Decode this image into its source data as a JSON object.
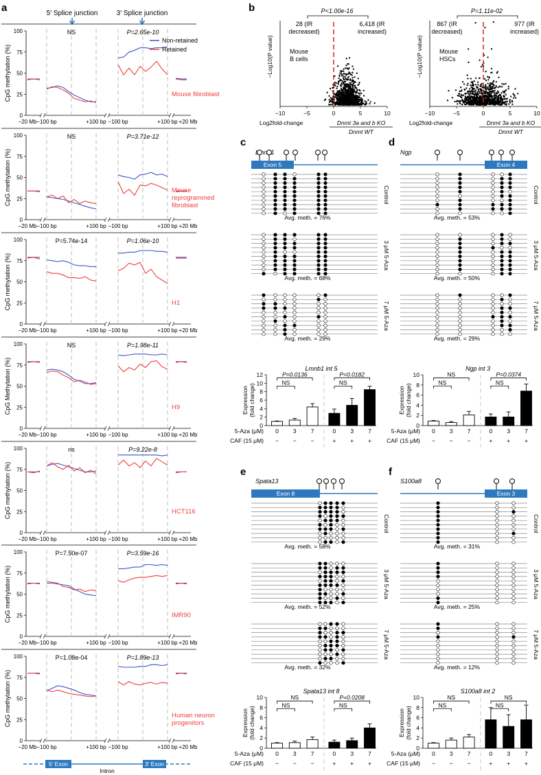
{
  "colors": {
    "blue": "#3a55c8",
    "red": "#f03c3c",
    "dash": "#c8c8c8",
    "exon": "#2e78c0",
    "redline": "#d42020"
  },
  "panel_labels": {
    "a": "a",
    "b": "b",
    "c": "c",
    "d": "d",
    "e": "e",
    "f": "f"
  },
  "panel_a": {
    "header_5": "5′ Splice junction",
    "header_3": "3′ Splice junction",
    "legend": [
      "Non-retained",
      "Retained"
    ],
    "ylabel": "CpG methylation (%)",
    "ylabel_alt": "CpG Methylation (%)",
    "xticks": [
      "−20 Mb",
      "−100 bp",
      "+100 bp",
      "−100 bp",
      "+100 bp",
      "+20 Mb"
    ],
    "yticks": [
      "0",
      "25",
      "50",
      "75",
      "100"
    ],
    "gene_model": {
      "exon5": "5′ Exon",
      "exon3": "3′ Exon",
      "intron": "Intron"
    }
  },
  "chart_data": [
    {
      "type": "line",
      "title": "Mouse fibroblast",
      "p5": "NS",
      "p3": "P=2.65e-10",
      "ylabel_key": "ylabel",
      "ylim": [
        0,
        100
      ],
      "series": [
        {
          "name": "Non-retained",
          "segments": [
            [
              43,
              43,
              43
            ],
            [
              32,
              33,
              35,
              33,
              28,
              24,
              21,
              18,
              16,
              16
            ],
            [
              68,
              69,
              75,
              77,
              80,
              80,
              79,
              80,
              80,
              81
            ],
            [
              44,
              43,
              43
            ]
          ]
        },
        {
          "name": "Retained",
          "segments": [
            [
              42,
              43,
              42
            ],
            [
              31,
              34,
              33,
              30,
              26,
              20,
              18,
              16,
              17,
              15
            ],
            [
              60,
              48,
              56,
              48,
              58,
              52,
              57,
              64,
              55,
              48
            ],
            [
              43,
              42,
              42
            ]
          ]
        }
      ]
    },
    {
      "type": "line",
      "title": "Mouse reprogrammed fibroblast",
      "p5": "NS",
      "p3": "P=3.71e-12",
      "ylabel_key": "ylabel",
      "ylim": [
        0,
        100
      ],
      "series": [
        {
          "name": "Non-retained",
          "segments": [
            [
              34,
              34,
              34
            ],
            [
              27,
              26,
              25,
              24,
              22,
              20,
              18,
              16,
              14,
              13
            ],
            [
              53,
              51,
              50,
              48,
              53,
              54,
              56,
              53,
              54,
              51
            ],
            [
              34,
              34,
              34
            ]
          ]
        },
        {
          "name": "Retained",
          "segments": [
            [
              34,
              34,
              33
            ],
            [
              27,
              29,
              25,
              28,
              20,
              24,
              19,
              22,
              20,
              19
            ],
            [
              45,
              31,
              36,
              29,
              41,
              40,
              43,
              41,
              38,
              35
            ],
            [
              33,
              34,
              34
            ]
          ]
        }
      ]
    },
    {
      "type": "line",
      "title": "H1",
      "p5": "P=5.74e-14",
      "p3": "P=1.06e-10",
      "ylabel_key": "ylabel",
      "ylim": [
        0,
        100
      ],
      "series": [
        {
          "name": "Non-retained",
          "segments": [
            [
              79,
              79,
              79
            ],
            [
              76,
              75,
              74,
              75,
              73,
              70,
              69,
              69,
              68,
              68
            ],
            [
              84,
              84,
              85,
              85,
              87,
              87,
              87,
              86,
              86,
              85
            ],
            [
              79,
              79,
              79
            ]
          ]
        },
        {
          "name": "Retained",
          "segments": [
            [
              78,
              79,
              77
            ],
            [
              62,
              60,
              60,
              58,
              55,
              55,
              54,
              56,
              52,
              51
            ],
            [
              63,
              66,
              72,
              70,
              73,
              60,
              65,
              56,
              52,
              48
            ],
            [
              78,
              78,
              78
            ]
          ]
        }
      ]
    },
    {
      "type": "line",
      "title": "H9",
      "p5": "NS",
      "p3": "P=1.98e-11",
      "ylabel_key": "ylabel_alt",
      "ylim": [
        0,
        100
      ],
      "series": [
        {
          "name": "Non-retained",
          "segments": [
            [
              79,
              79,
              79
            ],
            [
              69,
              70,
              69,
              67,
              63,
              58,
              56,
              53,
              53,
              54
            ],
            [
              87,
              86,
              87,
              88,
              88,
              88,
              87,
              87,
              88,
              87
            ],
            [
              79,
              79,
              79
            ]
          ]
        },
        {
          "name": "Retained",
          "segments": [
            [
              78,
              79,
              78
            ],
            [
              66,
              68,
              67,
              63,
              60,
              55,
              57,
              55,
              52,
              53
            ],
            [
              74,
              67,
              72,
              69,
              76,
              72,
              79,
              80,
              73,
              70
            ],
            [
              78,
              79,
              78
            ]
          ]
        }
      ]
    },
    {
      "type": "line",
      "title": "HCT116",
      "p5": "ns",
      "p3": "P=9.22e-8",
      "ylabel_key": "ylabel",
      "ylim": [
        0,
        100
      ],
      "series": [
        {
          "name": "Non-retained",
          "segments": [
            [
              72,
              72,
              72
            ],
            [
              79,
              81,
              82,
              80,
              78,
              76,
              74,
              72,
              72,
              73
            ],
            [
              92,
              92,
              92,
              92,
              92,
              92,
              92,
              92,
              91,
              92
            ],
            [
              72,
              72,
              72
            ]
          ]
        },
        {
          "name": "Retained",
          "segments": [
            [
              72,
              71,
              73
            ],
            [
              79,
              83,
              78,
              75,
              80,
              73,
              77,
              71,
              74,
              70
            ],
            [
              80,
              86,
              79,
              83,
              77,
              85,
              79,
              88,
              84,
              80
            ],
            [
              71,
              72,
              72
            ]
          ]
        }
      ]
    },
    {
      "type": "line",
      "title": "IMR90",
      "p5": "P=7.50e-07",
      "p3": "P=3.59e-16",
      "ylabel_key": "ylabel",
      "ylim": [
        0,
        100
      ],
      "series": [
        {
          "name": "Non-retained",
          "segments": [
            [
              63,
              63,
              63
            ],
            [
              63,
              63,
              62,
              61,
              60,
              56,
              53,
              50,
              49,
              48
            ],
            [
              80,
              80,
              81,
              82,
              82,
              85,
              85,
              84,
              85,
              84
            ],
            [
              63,
              63,
              63
            ]
          ]
        },
        {
          "name": "Retained",
          "segments": [
            [
              62,
              63,
              62
            ],
            [
              65,
              64,
              63,
              59,
              58,
              55,
              56,
              53,
              55,
              54
            ],
            [
              66,
              64,
              67,
              69,
              70,
              70,
              71,
              72,
              71,
              72
            ],
            [
              62,
              63,
              62
            ]
          ]
        }
      ]
    },
    {
      "type": "line",
      "title": "Human neuron progenitors",
      "p5": "P=1.08e-04",
      "p3": "P=1.89e-13",
      "ylabel_key": "ylabel",
      "ylim": [
        0,
        100
      ],
      "series": [
        {
          "name": "Non-retained",
          "segments": [
            [
              80,
              80,
              80
            ],
            [
              59,
              62,
              65,
              64,
              62,
              60,
              57,
              55,
              54,
              53
            ],
            [
              88,
              87,
              87,
              87,
              88,
              88,
              90,
              90,
              89,
              90
            ],
            [
              80,
              80,
              80
            ]
          ]
        },
        {
          "name": "Retained",
          "segments": [
            [
              80,
              80,
              79
            ],
            [
              60,
              58,
              60,
              58,
              56,
              55,
              54,
              53,
              52,
              53
            ],
            [
              70,
              66,
              70,
              67,
              66,
              68,
              69,
              67,
              69,
              68
            ],
            [
              79,
              80,
              79
            ]
          ]
        }
      ]
    },
    {
      "type": "scatter",
      "title": "Mouse B cells",
      "pvalue": "P<1.00e-16",
      "left_label": "28 (IR decreased)",
      "right_label": "6,418 (IR increased)",
      "xlim": [
        -10,
        10
      ],
      "xticks": [
        "−10",
        "−5",
        "0",
        "5",
        "10"
      ],
      "xlabel_1": "Log2fold-change",
      "xlabel_2": "Dnmt 3a and b KO",
      "xlabel_3": "Dnmt WT",
      "ylabel": "−Log10(P value)"
    },
    {
      "type": "scatter",
      "title": "Mouse HSCs",
      "pvalue": "P=1.11e-02",
      "left_label": "867 (IR decreased)",
      "right_label": "977 (IR increased)",
      "xlim": [
        -10,
        10
      ],
      "xticks": [
        "−10",
        "−5",
        "0",
        "5",
        "10"
      ],
      "xlabel_1": "Log2fold-change",
      "xlabel_2": "Dnmt 3a and b KO",
      "xlabel_3": "Dnmt WT",
      "ylabel": "−Log10(P value)"
    },
    {
      "type": "bar",
      "title": "Lmnb1 int 5",
      "ylabel": "Expression (fold change)",
      "ylim": [
        0,
        12
      ],
      "yticks": [
        "0",
        "2",
        "4",
        "6",
        "8",
        "10",
        "12"
      ],
      "aza": [
        "0",
        "3",
        "7",
        "0",
        "3",
        "7"
      ],
      "caf": [
        "−",
        "−",
        "−",
        "+",
        "+",
        "+"
      ],
      "values": [
        1.0,
        1.3,
        4.4,
        2.9,
        4.8,
        8.5
      ],
      "errors": [
        0.1,
        0.4,
        0.8,
        1.0,
        1.6,
        0.8
      ],
      "brackets": [
        {
          "label": "P=0.0136",
          "from": 0,
          "to": 2,
          "level": 11.3
        },
        {
          "label": "NS",
          "from": 0,
          "to": 1,
          "level": 9.3
        },
        {
          "label": "P=0.0182",
          "from": 3,
          "to": 5,
          "level": 11.3
        },
        {
          "label": "NS",
          "from": 3,
          "to": 4,
          "level": 9.3
        }
      ]
    },
    {
      "type": "bar",
      "title": "Ngp int 3",
      "ylabel": "Expression (fold change)",
      "ylim": [
        0,
        10
      ],
      "yticks": [
        "0",
        "2",
        "4",
        "6",
        "8",
        "10"
      ],
      "aza": [
        "0",
        "3",
        "7",
        "0",
        "3",
        "7"
      ],
      "caf": [
        "−",
        "−",
        "−",
        "+",
        "+",
        "+"
      ],
      "values": [
        0.9,
        0.6,
        2.1,
        1.7,
        1.7,
        6.8
      ],
      "errors": [
        0.1,
        0.2,
        0.7,
        0.6,
        1.0,
        1.4
      ],
      "brackets": [
        {
          "label": "NS",
          "from": 0,
          "to": 2,
          "level": 9.4
        },
        {
          "label": "NS",
          "from": 0,
          "to": 1,
          "level": 7.8
        },
        {
          "label": "P=0.0374",
          "from": 3,
          "to": 5,
          "level": 9.4
        },
        {
          "label": "NS",
          "from": 3,
          "to": 4,
          "level": 7.8
        }
      ]
    },
    {
      "type": "bar",
      "title": "Spata13 int 8",
      "ylabel": "Expression (fold change)",
      "ylim": [
        0,
        10
      ],
      "yticks": [
        "0",
        "2",
        "4",
        "6",
        "8",
        "10"
      ],
      "aza": [
        "0",
        "3",
        "7",
        "0",
        "3",
        "7"
      ],
      "caf": [
        "−",
        "−",
        "−",
        "+",
        "+",
        "+"
      ],
      "values": [
        1.0,
        1.1,
        1.7,
        1.2,
        1.5,
        4.0
      ],
      "errors": [
        0.1,
        0.3,
        0.5,
        0.4,
        0.5,
        0.8
      ],
      "brackets": [
        {
          "label": "NS",
          "from": 0,
          "to": 2,
          "level": 9.3
        },
        {
          "label": "NS",
          "from": 0,
          "to": 1,
          "level": 7.8
        },
        {
          "label": "P=0.0208",
          "from": 3,
          "to": 5,
          "level": 9.3
        },
        {
          "label": "NS",
          "from": 3,
          "to": 4,
          "level": 7.8
        }
      ]
    },
    {
      "type": "bar",
      "title": "S100a8 int 2",
      "ylabel": "Expression (fold change)",
      "ylim": [
        0,
        10
      ],
      "yticks": [
        "0",
        "2",
        "4",
        "6",
        "8",
        "10"
      ],
      "aza": [
        "0",
        "3",
        "7",
        "0",
        "3",
        "7"
      ],
      "caf": [
        "−",
        "−",
        "−",
        "+",
        "+",
        "+"
      ],
      "values": [
        1.0,
        1.6,
        2.2,
        5.6,
        4.3,
        5.6
      ],
      "errors": [
        0.1,
        0.4,
        0.5,
        2.4,
        2.3,
        2.9
      ],
      "brackets": [
        {
          "label": "NS",
          "from": 0,
          "to": 2,
          "level": 9.3
        },
        {
          "label": "NS",
          "from": 0,
          "to": 1,
          "level": 7.8
        },
        {
          "label": "NS",
          "from": 3,
          "to": 5,
          "level": 9.3
        },
        {
          "label": "NS",
          "from": 3,
          "to": 4,
          "level": 7.8
        }
      ]
    }
  ],
  "methylation": [
    {
      "gene": "Lmnb1",
      "exon": "Exon 5",
      "exon_side": "left",
      "groups": [
        {
          "label": "Control",
          "avg": "Avg. meth. = 76%"
        },
        {
          "label": "3 μM 5-Aza",
          "avg": "Avg. meth. = 68%"
        },
        {
          "label": "7 μM 5-Aza",
          "avg": "Avg. meth. = 29%"
        }
      ]
    },
    {
      "gene": "Ngp",
      "exon": "Exon 4",
      "exon_side": "right",
      "groups": [
        {
          "label": "Control",
          "avg": "Avg. meth. = 53%"
        },
        {
          "label": "3 μM 5-Aza",
          "avg": "Avg. meth. = 50%"
        },
        {
          "label": "7 μM 5-Aza",
          "avg": "Avg. meth. = 29%"
        }
      ]
    },
    {
      "gene": "Spata13",
      "exon": "Exon 8",
      "exon_side": "left",
      "groups": [
        {
          "label": "Control",
          "avg": "Avg. meth. = 58%"
        },
        {
          "label": "3 μM 5-Aza",
          "avg": "Avg. meth. = 52%"
        },
        {
          "label": "7 μM 5-Aza",
          "avg": "Avg. meth. = 32%"
        }
      ]
    },
    {
      "gene": "S100a8",
      "exon": "Exon 3",
      "exon_side": "right",
      "groups": [
        {
          "label": "Control",
          "avg": "Avg. meth. = 31%"
        },
        {
          "label": "3 μM 5-Aza",
          "avg": "Avg. meth. = 25%"
        },
        {
          "label": "7 μM 5-Aza",
          "avg": "Avg. meth. = 12%"
        }
      ]
    }
  ],
  "treatment_labels": {
    "aza": "5-Aza (μM)",
    "caf": "CAF (15 μM)"
  }
}
